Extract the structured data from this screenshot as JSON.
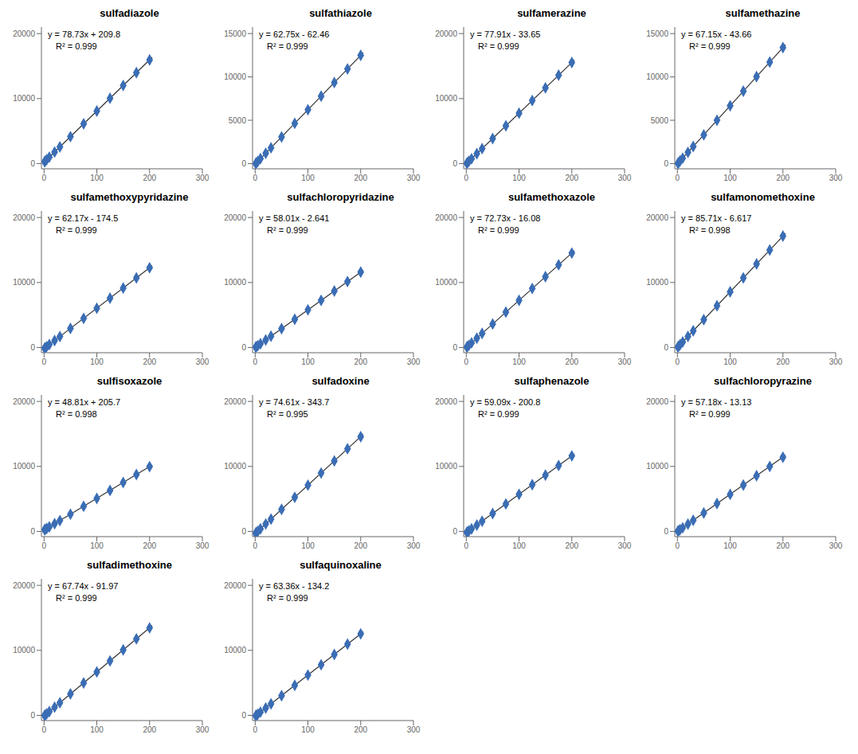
{
  "chart_data": [
    {
      "type": "scatter",
      "title": "sulfadiazole",
      "annotations": [
        "y = 78.73x + 209.8",
        "R² = 0.999"
      ],
      "xlim": [
        -5,
        300
      ],
      "xticks": [
        0,
        100,
        200,
        300
      ],
      "ylim": [
        -800,
        21000
      ],
      "yticks": [
        0,
        10000,
        20000
      ],
      "grid": false,
      "series": [
        {
          "type": "scatter",
          "marker": "diamond",
          "color": "#3A6DB5",
          "x": [
            1,
            2,
            5,
            10,
            20,
            30,
            50,
            75,
            100,
            125,
            150,
            175,
            200
          ],
          "values": [
            288.53,
            367.26,
            603.45,
            997.1,
            1784.4,
            2571.7,
            4146.3,
            6114.55,
            8082.8,
            10051.05,
            12019.3,
            13987.55,
            15955.8
          ]
        },
        {
          "type": "line",
          "line_style": "solid",
          "color": "#333333",
          "x": [
            0,
            205
          ],
          "values": [
            209.8,
            16349.45
          ]
        }
      ]
    },
    {
      "type": "scatter",
      "title": "sulfathiazole",
      "annotations": [
        "y = 62.75x - 62.46",
        "R² = 0.999"
      ],
      "xlim": [
        -5,
        300
      ],
      "xticks": [
        0,
        100,
        200,
        300
      ],
      "ylim": [
        -600,
        15750
      ],
      "yticks": [
        0,
        5000,
        10000,
        15000
      ],
      "grid": false,
      "series": [
        {
          "type": "scatter",
          "marker": "diamond",
          "color": "#3A6DB5",
          "x": [
            1,
            2,
            5,
            10,
            20,
            30,
            50,
            75,
            100,
            125,
            150,
            175,
            200
          ],
          "values": [
            0.29,
            63.04,
            251.29,
            565.04,
            1192.54,
            1820.04,
            3075.04,
            4643.79,
            6212.54,
            7781.29,
            9350.04,
            10918.79,
            12487.54
          ]
        },
        {
          "type": "line",
          "line_style": "solid",
          "color": "#333333",
          "x": [
            0,
            205
          ],
          "values": [
            -62.46,
            12801.29
          ]
        }
      ]
    },
    {
      "type": "scatter",
      "title": "sulfamerazine",
      "annotations": [
        "y = 77.91x - 33.65",
        "R² = 0.999"
      ],
      "xlim": [
        -5,
        300
      ],
      "xticks": [
        0,
        100,
        200,
        300
      ],
      "ylim": [
        -800,
        21000
      ],
      "yticks": [
        0,
        10000,
        20000
      ],
      "grid": false,
      "series": [
        {
          "type": "scatter",
          "marker": "diamond",
          "color": "#3A6DB5",
          "x": [
            1,
            2,
            5,
            10,
            20,
            30,
            50,
            75,
            100,
            125,
            150,
            175,
            200
          ],
          "values": [
            44.26,
            122.17,
            355.9,
            745.45,
            1524.55,
            2303.65,
            3861.85,
            5809.6,
            7757.35,
            9705.1,
            11652.85,
            13600.6,
            15548.35
          ]
        },
        {
          "type": "line",
          "line_style": "solid",
          "color": "#333333",
          "x": [
            0,
            205
          ],
          "values": [
            -33.65,
            15937.9
          ]
        }
      ]
    },
    {
      "type": "scatter",
      "title": "sulfamethazine",
      "annotations": [
        "y = 67.15x - 43.66",
        "R² = 0.999"
      ],
      "xlim": [
        -5,
        300
      ],
      "xticks": [
        0,
        100,
        200,
        300
      ],
      "ylim": [
        -600,
        15750
      ],
      "yticks": [
        0,
        5000,
        10000,
        15000
      ],
      "grid": false,
      "series": [
        {
          "type": "scatter",
          "marker": "diamond",
          "color": "#3A6DB5",
          "x": [
            1,
            2,
            5,
            10,
            20,
            30,
            50,
            75,
            100,
            125,
            150,
            175,
            200
          ],
          "values": [
            23.49,
            90.64,
            292.09,
            627.84,
            1299.34,
            1970.84,
            3313.84,
            4992.59,
            6671.34,
            8350.09,
            10028.84,
            11707.59,
            13386.34
          ]
        },
        {
          "type": "line",
          "line_style": "solid",
          "color": "#333333",
          "x": [
            0,
            205
          ],
          "values": [
            -43.66,
            13722.09
          ]
        }
      ]
    },
    {
      "type": "scatter",
      "title": "sulfamethoxypyridazine",
      "annotations": [
        "y = 62.17x - 174.5",
        "R² = 0.999"
      ],
      "xlim": [
        -5,
        300
      ],
      "xticks": [
        0,
        100,
        200,
        300
      ],
      "ylim": [
        -800,
        21000
      ],
      "yticks": [
        0,
        10000,
        20000
      ],
      "grid": false,
      "series": [
        {
          "type": "scatter",
          "marker": "diamond",
          "color": "#3A6DB5",
          "x": [
            1,
            2,
            5,
            10,
            20,
            30,
            50,
            75,
            100,
            125,
            150,
            175,
            200
          ],
          "values": [
            -112.33,
            -50.16,
            136.35,
            447.2,
            1068.9,
            1690.6,
            2934,
            4488.25,
            6042.5,
            7596.75,
            9151,
            10705.25,
            12259.5
          ]
        },
        {
          "type": "line",
          "line_style": "solid",
          "color": "#333333",
          "x": [
            0,
            205
          ],
          "values": [
            -174.5,
            12570.35
          ]
        }
      ]
    },
    {
      "type": "scatter",
      "title": "sulfachloropyridazine",
      "annotations": [
        "y = 58.01x - 2.641",
        "R² = 0.999"
      ],
      "xlim": [
        -5,
        300
      ],
      "xticks": [
        0,
        100,
        200,
        300
      ],
      "ylim": [
        -800,
        21000
      ],
      "yticks": [
        0,
        10000,
        20000
      ],
      "grid": false,
      "series": [
        {
          "type": "scatter",
          "marker": "diamond",
          "color": "#3A6DB5",
          "x": [
            1,
            2,
            5,
            10,
            20,
            30,
            50,
            75,
            100,
            125,
            150,
            175,
            200
          ],
          "values": [
            55.369,
            113.379,
            287.409,
            577.459,
            1157.559,
            1737.659,
            2897.859,
            4348.109,
            5798.359,
            7248.609,
            8698.859,
            10149.109,
            11599.359
          ]
        },
        {
          "type": "line",
          "line_style": "solid",
          "color": "#333333",
          "x": [
            0,
            205
          ],
          "values": [
            -2.641,
            11889.409
          ]
        }
      ]
    },
    {
      "type": "scatter",
      "title": "sulfamethoxazole",
      "annotations": [
        "y = 72.73x - 16.08",
        "R² = 0.999"
      ],
      "xlim": [
        -5,
        300
      ],
      "xticks": [
        0,
        100,
        200,
        300
      ],
      "ylim": [
        -800,
        21000
      ],
      "yticks": [
        0,
        10000,
        20000
      ],
      "grid": false,
      "series": [
        {
          "type": "scatter",
          "marker": "diamond",
          "color": "#3A6DB5",
          "x": [
            1,
            2,
            5,
            10,
            20,
            30,
            50,
            75,
            100,
            125,
            150,
            175,
            200
          ],
          "values": [
            56.65,
            129.38,
            347.57,
            711.22,
            1438.52,
            2165.82,
            3620.42,
            5438.67,
            7256.92,
            9075.17,
            10893.42,
            12711.67,
            14529.92
          ]
        },
        {
          "type": "line",
          "line_style": "solid",
          "color": "#333333",
          "x": [
            0,
            205
          ],
          "values": [
            -16.08,
            14893.57
          ]
        }
      ]
    },
    {
      "type": "scatter",
      "title": "sulfamonomethoxine",
      "annotations": [
        "y = 85.71x - 6.617",
        "R² = 0.998"
      ],
      "xlim": [
        -5,
        300
      ],
      "xticks": [
        0,
        100,
        200,
        300
      ],
      "ylim": [
        -800,
        21000
      ],
      "yticks": [
        0,
        10000,
        20000
      ],
      "grid": false,
      "series": [
        {
          "type": "scatter",
          "marker": "diamond",
          "color": "#3A6DB5",
          "x": [
            1,
            2,
            5,
            10,
            20,
            30,
            50,
            75,
            100,
            125,
            150,
            175,
            200
          ],
          "values": [
            79.093,
            164.803,
            421.933,
            850.483,
            1707.583,
            2564.683,
            4278.883,
            6421.633,
            8564.383,
            10707.133,
            12849.883,
            14992.633,
            17135.383
          ]
        },
        {
          "type": "line",
          "line_style": "solid",
          "color": "#333333",
          "x": [
            0,
            205
          ],
          "values": [
            -6.617,
            17563.933
          ]
        }
      ]
    },
    {
      "type": "scatter",
      "title": "sulfisoxazole",
      "annotations": [
        "y = 48.81x + 205.7",
        "R² = 0.998"
      ],
      "xlim": [
        -5,
        300
      ],
      "xticks": [
        0,
        100,
        200,
        300
      ],
      "ylim": [
        -800,
        21000
      ],
      "yticks": [
        0,
        10000,
        20000
      ],
      "grid": false,
      "series": [
        {
          "type": "scatter",
          "marker": "diamond",
          "color": "#3A6DB5",
          "x": [
            1,
            2,
            5,
            10,
            20,
            30,
            50,
            75,
            100,
            125,
            150,
            175,
            200
          ],
          "values": [
            254.51,
            303.32,
            449.75,
            693.8,
            1181.9,
            1670,
            2646.2,
            3866.45,
            5086.7,
            6306.95,
            7527.2,
            8747.45,
            9967.7
          ]
        },
        {
          "type": "line",
          "line_style": "solid",
          "color": "#333333",
          "x": [
            0,
            205
          ],
          "values": [
            205.7,
            10211.75
          ]
        }
      ]
    },
    {
      "type": "scatter",
      "title": "sulfadoxine",
      "annotations": [
        "y = 74.61x - 343.7",
        "R² = 0.995"
      ],
      "xlim": [
        -5,
        300
      ],
      "xticks": [
        0,
        100,
        200,
        300
      ],
      "ylim": [
        -800,
        21000
      ],
      "yticks": [
        0,
        10000,
        20000
      ],
      "grid": false,
      "series": [
        {
          "type": "scatter",
          "marker": "diamond",
          "color": "#3A6DB5",
          "x": [
            1,
            2,
            5,
            10,
            20,
            30,
            50,
            75,
            100,
            125,
            150,
            175,
            200
          ],
          "values": [
            -269.09,
            -194.48,
            29.35,
            402.4,
            1148.5,
            1894.6,
            3386.8,
            5252.05,
            7117.3,
            8982.55,
            10847.8,
            12713.05,
            14578.3
          ]
        },
        {
          "type": "line",
          "line_style": "solid",
          "color": "#333333",
          "x": [
            0,
            205
          ],
          "values": [
            -343.7,
            14951.35
          ]
        }
      ]
    },
    {
      "type": "scatter",
      "title": "sulfaphenazole",
      "annotations": [
        "y = 59.09x - 200.8",
        "R² = 0.999"
      ],
      "xlim": [
        -5,
        300
      ],
      "xticks": [
        0,
        100,
        200,
        300
      ],
      "ylim": [
        -800,
        21000
      ],
      "yticks": [
        0,
        10000,
        20000
      ],
      "grid": false,
      "series": [
        {
          "type": "scatter",
          "marker": "diamond",
          "color": "#3A6DB5",
          "x": [
            1,
            2,
            5,
            10,
            20,
            30,
            50,
            75,
            100,
            125,
            150,
            175,
            200
          ],
          "values": [
            -141.71,
            -82.62,
            94.65,
            390.1,
            981,
            1571.9,
            2753.7,
            4230.95,
            5708.2,
            7185.45,
            8662.7,
            10139.95,
            11617.2
          ]
        },
        {
          "type": "line",
          "line_style": "solid",
          "color": "#333333",
          "x": [
            0,
            205
          ],
          "values": [
            -200.8,
            11912.65
          ]
        }
      ]
    },
    {
      "type": "scatter",
      "title": "sulfachloropyrazine",
      "annotations": [
        "y = 57.18x - 13.13",
        "R² = 0.999"
      ],
      "xlim": [
        -5,
        300
      ],
      "xticks": [
        0,
        100,
        200,
        300
      ],
      "ylim": [
        -800,
        21000
      ],
      "yticks": [
        0,
        10000,
        20000
      ],
      "grid": false,
      "series": [
        {
          "type": "scatter",
          "marker": "diamond",
          "color": "#3A6DB5",
          "x": [
            1,
            2,
            5,
            10,
            20,
            30,
            50,
            75,
            100,
            125,
            150,
            175,
            200
          ],
          "values": [
            44.05,
            101.23,
            272.77,
            558.67,
            1130.47,
            1702.27,
            2845.87,
            4275.37,
            5704.87,
            7134.37,
            8563.87,
            9993.37,
            11422.87
          ]
        },
        {
          "type": "line",
          "line_style": "solid",
          "color": "#333333",
          "x": [
            0,
            205
          ],
          "values": [
            -13.13,
            11708.77
          ]
        }
      ]
    },
    {
      "type": "scatter",
      "title": "sulfadimethoxine",
      "annotations": [
        "y = 67.74x - 91.97",
        "R² = 0.999"
      ],
      "xlim": [
        -5,
        300
      ],
      "xticks": [
        0,
        100,
        200,
        300
      ],
      "ylim": [
        -800,
        21000
      ],
      "yticks": [
        0,
        10000,
        20000
      ],
      "grid": false,
      "series": [
        {
          "type": "scatter",
          "marker": "diamond",
          "color": "#3A6DB5",
          "x": [
            1,
            2,
            5,
            10,
            20,
            30,
            50,
            75,
            100,
            125,
            150,
            175,
            200
          ],
          "values": [
            -24.23,
            43.51,
            246.73,
            585.43,
            1262.83,
            1940.23,
            3295.03,
            4988.53,
            6682.03,
            8375.53,
            10069.03,
            11762.53,
            13456.03
          ]
        },
        {
          "type": "line",
          "line_style": "solid",
          "color": "#333333",
          "x": [
            0,
            205
          ],
          "values": [
            -91.97,
            13794.73
          ]
        }
      ]
    },
    {
      "type": "scatter",
      "title": "sulfaquinoxaline",
      "annotations": [
        "y = 63.36x - 134.2",
        "R² = 0.999"
      ],
      "xlim": [
        -5,
        300
      ],
      "xticks": [
        0,
        100,
        200,
        300
      ],
      "ylim": [
        -800,
        21000
      ],
      "yticks": [
        0,
        10000,
        20000
      ],
      "grid": false,
      "series": [
        {
          "type": "scatter",
          "marker": "diamond",
          "color": "#3A6DB5",
          "x": [
            1,
            2,
            5,
            10,
            20,
            30,
            50,
            75,
            100,
            125,
            150,
            175,
            200
          ],
          "values": [
            -70.84,
            -7.48,
            182.6,
            499.4,
            1133,
            1766.6,
            3033.8,
            4617.8,
            6201.8,
            7785.8,
            9369.8,
            10953.8,
            12537.8
          ]
        },
        {
          "type": "line",
          "line_style": "solid",
          "color": "#333333",
          "x": [
            0,
            205
          ],
          "values": [
            -134.2,
            12854.6
          ]
        }
      ]
    }
  ]
}
